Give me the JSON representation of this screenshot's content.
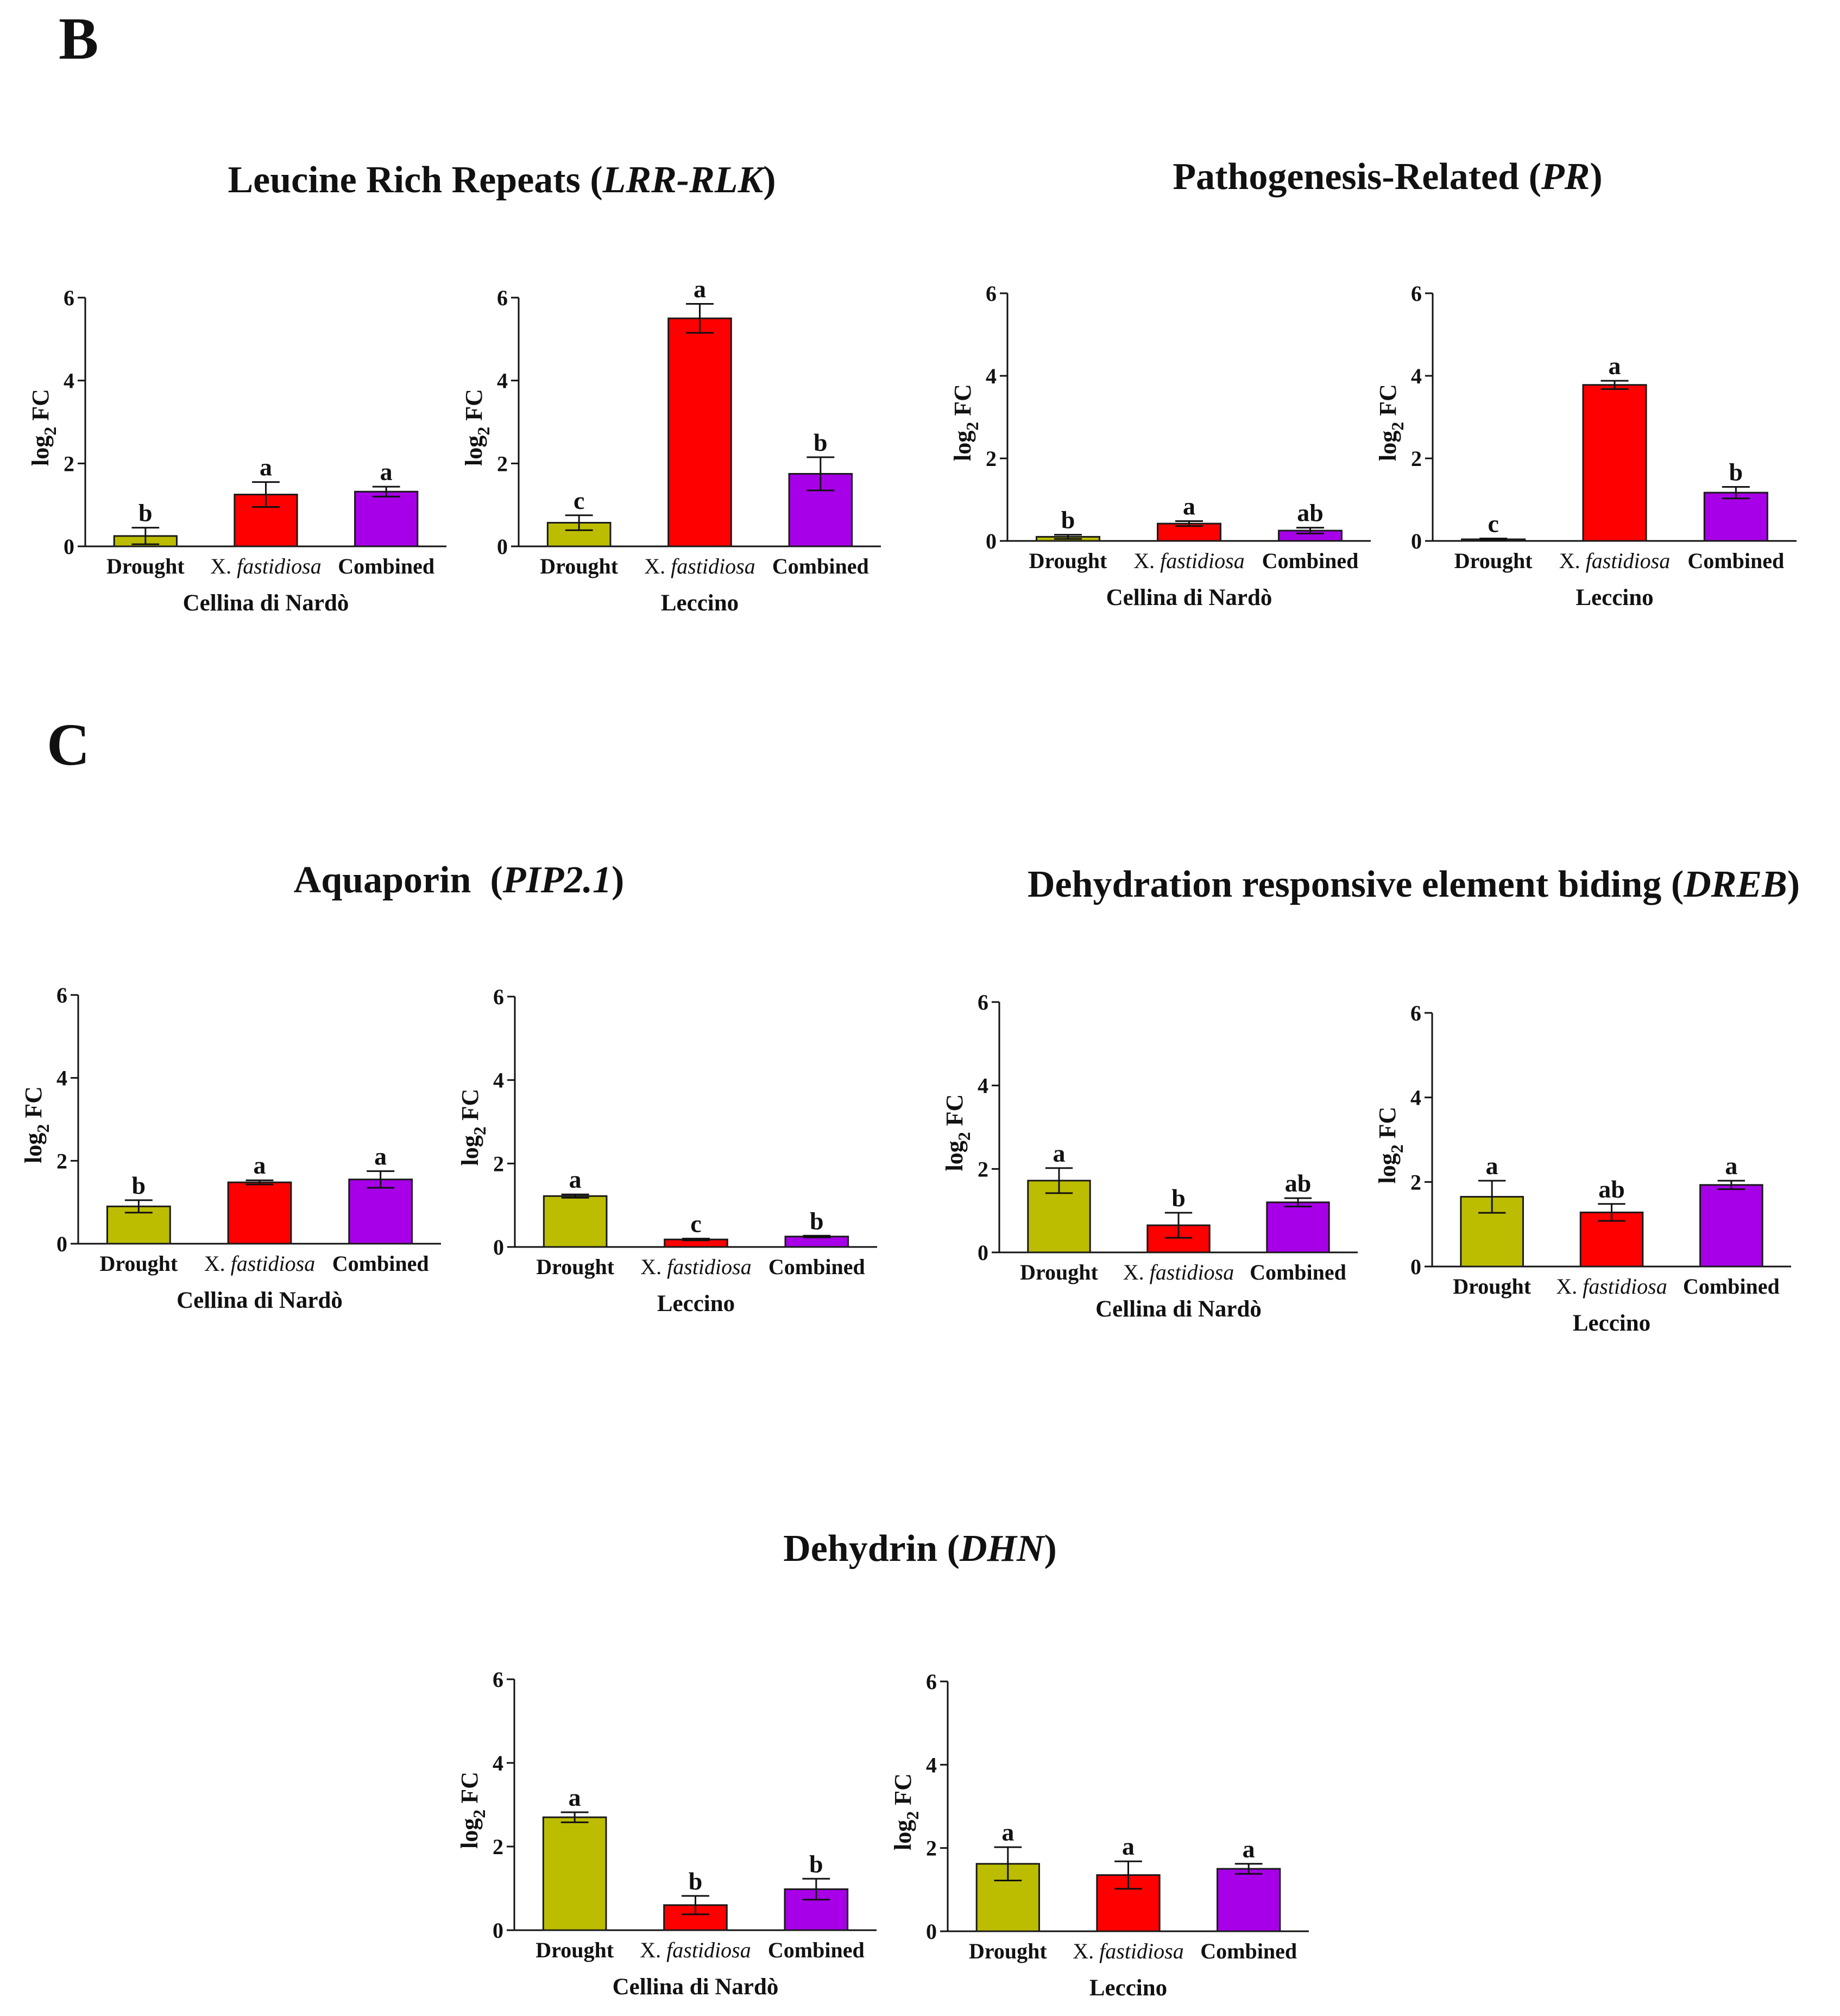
{
  "panels": [
    {
      "letter": "B"
    },
    {
      "letter": "C"
    }
  ],
  "colors": {
    "Drought": "#bcbd00",
    "X. fastidiosa": "#ff0000",
    "Combined": "#a700e8",
    "border": "#1a1a1a"
  },
  "chart_data": [
    {
      "type": "bar",
      "gene": "Leucine Rich Repeats",
      "gene_symbol": "LRR-RLK",
      "cultivar": "Cellina di Nardò",
      "categories": [
        "Drought",
        "X. fastidiosa",
        "Combined"
      ],
      "values": [
        0.25,
        1.25,
        1.32
      ],
      "errors": [
        0.2,
        0.3,
        0.12
      ],
      "significance": [
        "b",
        "a",
        "a"
      ],
      "ylabel": "log2 FC",
      "ylim": [
        0,
        6
      ],
      "yticks": [
        0,
        2,
        4,
        6
      ]
    },
    {
      "type": "bar",
      "gene": "Leucine Rich Repeats",
      "gene_symbol": "LRR-RLK",
      "cultivar": "Leccino",
      "categories": [
        "Drought",
        "X. fastidiosa",
        "Combined"
      ],
      "values": [
        0.57,
        5.5,
        1.75
      ],
      "errors": [
        0.18,
        0.35,
        0.4
      ],
      "significance": [
        "c",
        "a",
        "b"
      ],
      "ylabel": "log2 FC",
      "ylim": [
        0,
        6
      ],
      "yticks": [
        0,
        2,
        4,
        6
      ]
    },
    {
      "type": "bar",
      "gene": "Pathogenesis-Related",
      "gene_symbol": "PR",
      "cultivar": "Cellina di Nardò",
      "categories": [
        "Drought",
        "X. fastidiosa",
        "Combined"
      ],
      "values": [
        0.1,
        0.42,
        0.25
      ],
      "errors": [
        0.05,
        0.06,
        0.07
      ],
      "significance": [
        "b",
        "a",
        "ab"
      ],
      "ylabel": "log2 FC",
      "ylim": [
        0,
        6
      ],
      "yticks": [
        0,
        2,
        4,
        6
      ]
    },
    {
      "type": "bar",
      "gene": "Pathogenesis-Related",
      "gene_symbol": "PR",
      "cultivar": "Leccino",
      "categories": [
        "Drought",
        "X. fastidiosa",
        "Combined"
      ],
      "values": [
        0.04,
        3.78,
        1.17
      ],
      "errors": [
        0.02,
        0.1,
        0.14
      ],
      "significance": [
        "c",
        "a",
        "b"
      ],
      "ylabel": "log2 FC",
      "ylim": [
        0,
        6
      ],
      "yticks": [
        0,
        2,
        4,
        6
      ]
    },
    {
      "type": "bar",
      "gene": "Aquaporin ",
      "gene_symbol": "PIP2.1",
      "cultivar": "Cellina di Nardò",
      "categories": [
        "Drought",
        "X. fastidiosa",
        "Combined"
      ],
      "values": [
        0.9,
        1.48,
        1.55
      ],
      "errors": [
        0.15,
        0.05,
        0.2
      ],
      "significance": [
        "b",
        "a",
        "a"
      ],
      "ylabel": "log2 FC",
      "ylim": [
        0,
        6
      ],
      "yticks": [
        0,
        2,
        4,
        6
      ]
    },
    {
      "type": "bar",
      "gene": "Aquaporin ",
      "gene_symbol": "PIP2.1",
      "cultivar": "Leccino",
      "categories": [
        "Drought",
        "X. fastidiosa",
        "Combined"
      ],
      "values": [
        1.22,
        0.18,
        0.25
      ],
      "errors": [
        0.04,
        0.02,
        0.02
      ],
      "significance": [
        "a",
        "c",
        "b"
      ],
      "ylabel": "log2 FC",
      "ylim": [
        0,
        6
      ],
      "yticks": [
        0,
        2,
        4,
        6
      ]
    },
    {
      "type": "bar",
      "gene": "Dehydration responsive element biding",
      "gene_symbol": "DREB",
      "cultivar": "Cellina di Nardò",
      "categories": [
        "Drought",
        "X. fastidiosa",
        "Combined"
      ],
      "values": [
        1.72,
        0.65,
        1.2
      ],
      "errors": [
        0.3,
        0.3,
        0.1
      ],
      "significance": [
        "a",
        "b",
        "ab"
      ],
      "ylabel": "log2 FC",
      "ylim": [
        0,
        6
      ],
      "yticks": [
        0,
        2,
        4,
        6
      ]
    },
    {
      "type": "bar",
      "gene": "Dehydration responsive element biding",
      "gene_symbol": "DREB",
      "cultivar": "Leccino",
      "categories": [
        "Drought",
        "X. fastidiosa",
        "Combined"
      ],
      "values": [
        1.65,
        1.28,
        1.93
      ],
      "errors": [
        0.38,
        0.2,
        0.1
      ],
      "significance": [
        "a",
        "ab",
        "a"
      ],
      "ylabel": "log2 FC",
      "ylim": [
        0,
        6
      ],
      "yticks": [
        0,
        2,
        4,
        6
      ]
    },
    {
      "type": "bar",
      "gene": "Dehydrin",
      "gene_symbol": "DHN",
      "cultivar": "Cellina di Nardò",
      "categories": [
        "Drought",
        "X. fastidiosa",
        "Combined"
      ],
      "values": [
        2.7,
        0.6,
        0.98
      ],
      "errors": [
        0.12,
        0.22,
        0.25
      ],
      "significance": [
        "a",
        "b",
        "b"
      ],
      "ylabel": "log2 FC",
      "ylim": [
        0,
        6
      ],
      "yticks": [
        0,
        2,
        4,
        6
      ]
    },
    {
      "type": "bar",
      "gene": "Dehydrin",
      "gene_symbol": "DHN",
      "cultivar": "Leccino",
      "categories": [
        "Drought",
        "X. fastidiosa",
        "Combined"
      ],
      "values": [
        1.62,
        1.35,
        1.5
      ],
      "errors": [
        0.4,
        0.33,
        0.12
      ],
      "significance": [
        "a",
        "a",
        "a"
      ],
      "ylabel": "log2 FC",
      "ylim": [
        0,
        6
      ],
      "yticks": [
        0,
        2,
        4,
        6
      ]
    }
  ]
}
